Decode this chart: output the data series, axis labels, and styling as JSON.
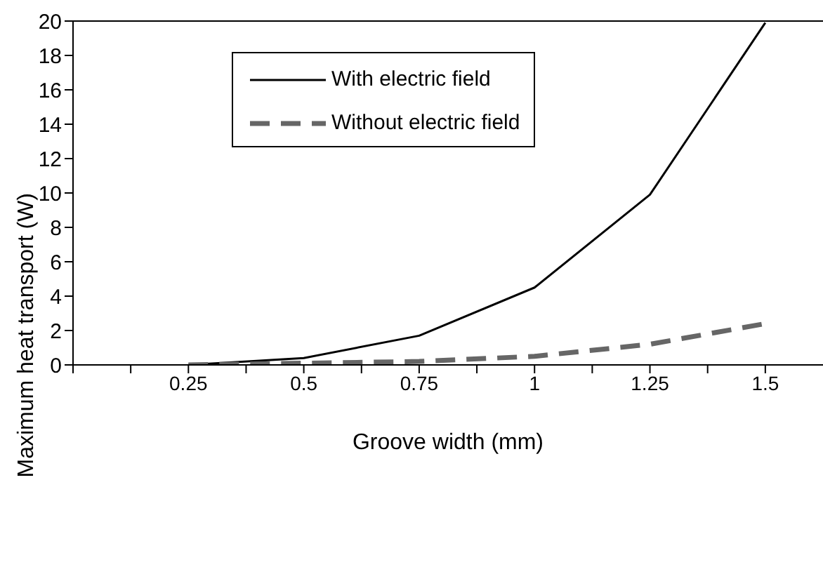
{
  "chart_data": {
    "type": "line",
    "xlabel": "Groove width (mm)",
    "ylabel": "Maximum heat transport (W)",
    "x": [
      0.25,
      0.5,
      0.75,
      1,
      1.25,
      1.5
    ],
    "series": [
      {
        "name": "With electric field",
        "color": "#000000",
        "values": [
          0,
          0.4,
          1.7,
          4.5,
          9.9,
          19.9
        ],
        "line_style": "solid"
      },
      {
        "name": "Without electric field",
        "color": "#666666",
        "values": [
          0,
          0.1,
          0.2,
          0.5,
          1.2,
          2.4
        ],
        "line_style": "dashed"
      }
    ],
    "xlim": [
      0,
      1.625
    ],
    "xticks": [
      {
        "value": 0,
        "label": null
      },
      {
        "value": 0.125,
        "label": null
      },
      0.25,
      {
        "value": 0.375,
        "label": null
      },
      0.5,
      {
        "value": 0.625,
        "label": null
      },
      0.75,
      {
        "value": 0.875,
        "label": null
      },
      1,
      {
        "value": 1.125,
        "label": null
      },
      1.25,
      {
        "value": 1.375,
        "label": null
      },
      1.5
    ],
    "ylim": [
      0,
      20
    ],
    "yticks": [
      0,
      2,
      4,
      6,
      8,
      10,
      12,
      14,
      16,
      18,
      20
    ],
    "grid": false,
    "legend": "top left",
    "marker": "none"
  }
}
